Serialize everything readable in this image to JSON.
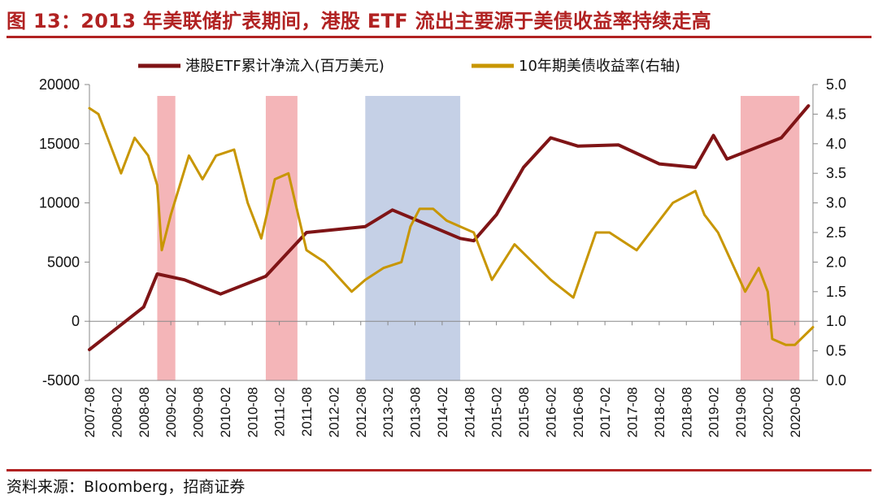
{
  "figure": {
    "title": "图 13：2013 年美联储扩表期间，港股 ETF 流出主要源于美债收益率持续走高",
    "source": "资料来源：Bloomberg，招商证券"
  },
  "chart_data": {
    "type": "line",
    "x_ticks": [
      "2007-08",
      "2008-02",
      "2008-08",
      "2009-02",
      "2009-08",
      "2010-02",
      "2010-08",
      "2011-02",
      "2011-08",
      "2012-02",
      "2012-08",
      "2013-02",
      "2013-08",
      "2014-02",
      "2014-08",
      "2015-02",
      "2015-08",
      "2016-02",
      "2016-08",
      "2017-02",
      "2017-08",
      "2018-02",
      "2018-08",
      "2019-02",
      "2019-08",
      "2020-02",
      "2020-08"
    ],
    "y_left": {
      "ticks": [
        20000,
        15000,
        10000,
        5000,
        0,
        -5000
      ],
      "min": -5000,
      "max": 20000
    },
    "y_right": {
      "ticks": [
        "5.0",
        "4.5",
        "4.0",
        "3.5",
        "3.0",
        "2.5",
        "2.0",
        "1.5",
        "1.0",
        "0.5",
        "0.0"
      ],
      "min": 0,
      "max": 5
    },
    "shaded_periods": [
      {
        "start": "2008-11",
        "end": "2009-03",
        "color": "#f4b5b8"
      },
      {
        "start": "2010-11",
        "end": "2011-06",
        "color": "#f4b5b8"
      },
      {
        "start": "2012-09",
        "end": "2014-06",
        "color": "#c5d0e6"
      },
      {
        "start": "2019-08",
        "end": "2020-09",
        "color": "#f4b5b8"
      }
    ],
    "series": [
      {
        "name": "港股ETF累计净流入(百万美元)",
        "axis": "left",
        "color": "#7f1416",
        "points": [
          [
            "2007-08",
            -2400
          ],
          [
            "2008-08",
            1200
          ],
          [
            "2008-11",
            4000
          ],
          [
            "2009-05",
            3500
          ],
          [
            "2010-01",
            2300
          ],
          [
            "2010-11",
            3800
          ],
          [
            "2011-08",
            7500
          ],
          [
            "2012-09",
            8000
          ],
          [
            "2013-03",
            9400
          ],
          [
            "2014-06",
            7000
          ],
          [
            "2014-09",
            6800
          ],
          [
            "2015-02",
            9000
          ],
          [
            "2015-08",
            13000
          ],
          [
            "2016-02",
            15500
          ],
          [
            "2016-08",
            14800
          ],
          [
            "2017-05",
            14900
          ],
          [
            "2018-02",
            13300
          ],
          [
            "2018-10",
            13000
          ],
          [
            "2019-02",
            15700
          ],
          [
            "2019-05",
            13700
          ],
          [
            "2020-05",
            15500
          ],
          [
            "2020-11",
            18200
          ]
        ]
      },
      {
        "name": "10年期美债收益率(右轴)",
        "axis": "right",
        "color": "#c89600",
        "points": [
          [
            "2007-08",
            4.6
          ],
          [
            "2007-10",
            4.5
          ],
          [
            "2007-12",
            4.1
          ],
          [
            "2008-03",
            3.5
          ],
          [
            "2008-06",
            4.1
          ],
          [
            "2008-09",
            3.8
          ],
          [
            "2008-11",
            3.3
          ],
          [
            "2008-12",
            2.2
          ],
          [
            "2009-02",
            2.8
          ],
          [
            "2009-06",
            3.8
          ],
          [
            "2009-09",
            3.4
          ],
          [
            "2009-12",
            3.8
          ],
          [
            "2010-04",
            3.9
          ],
          [
            "2010-07",
            3.0
          ],
          [
            "2010-10",
            2.4
          ],
          [
            "2011-01",
            3.4
          ],
          [
            "2011-04",
            3.5
          ],
          [
            "2011-08",
            2.2
          ],
          [
            "2011-12",
            2.0
          ],
          [
            "2012-06",
            1.5
          ],
          [
            "2012-09",
            1.7
          ],
          [
            "2013-01",
            1.9
          ],
          [
            "2013-05",
            2.0
          ],
          [
            "2013-07",
            2.6
          ],
          [
            "2013-09",
            2.9
          ],
          [
            "2013-12",
            2.9
          ],
          [
            "2014-03",
            2.7
          ],
          [
            "2014-06",
            2.6
          ],
          [
            "2014-09",
            2.5
          ],
          [
            "2015-01",
            1.7
          ],
          [
            "2015-06",
            2.3
          ],
          [
            "2015-10",
            2.0
          ],
          [
            "2016-02",
            1.7
          ],
          [
            "2016-07",
            1.4
          ],
          [
            "2016-12",
            2.5
          ],
          [
            "2017-03",
            2.5
          ],
          [
            "2017-09",
            2.2
          ],
          [
            "2018-01",
            2.6
          ],
          [
            "2018-05",
            3.0
          ],
          [
            "2018-10",
            3.2
          ],
          [
            "2018-12",
            2.8
          ],
          [
            "2019-03",
            2.5
          ],
          [
            "2019-06",
            2.0
          ],
          [
            "2019-09",
            1.5
          ],
          [
            "2019-12",
            1.9
          ],
          [
            "2020-02",
            1.5
          ],
          [
            "2020-03",
            0.7
          ],
          [
            "2020-06",
            0.6
          ],
          [
            "2020-08",
            0.6
          ],
          [
            "2020-12",
            0.9
          ]
        ]
      }
    ]
  }
}
